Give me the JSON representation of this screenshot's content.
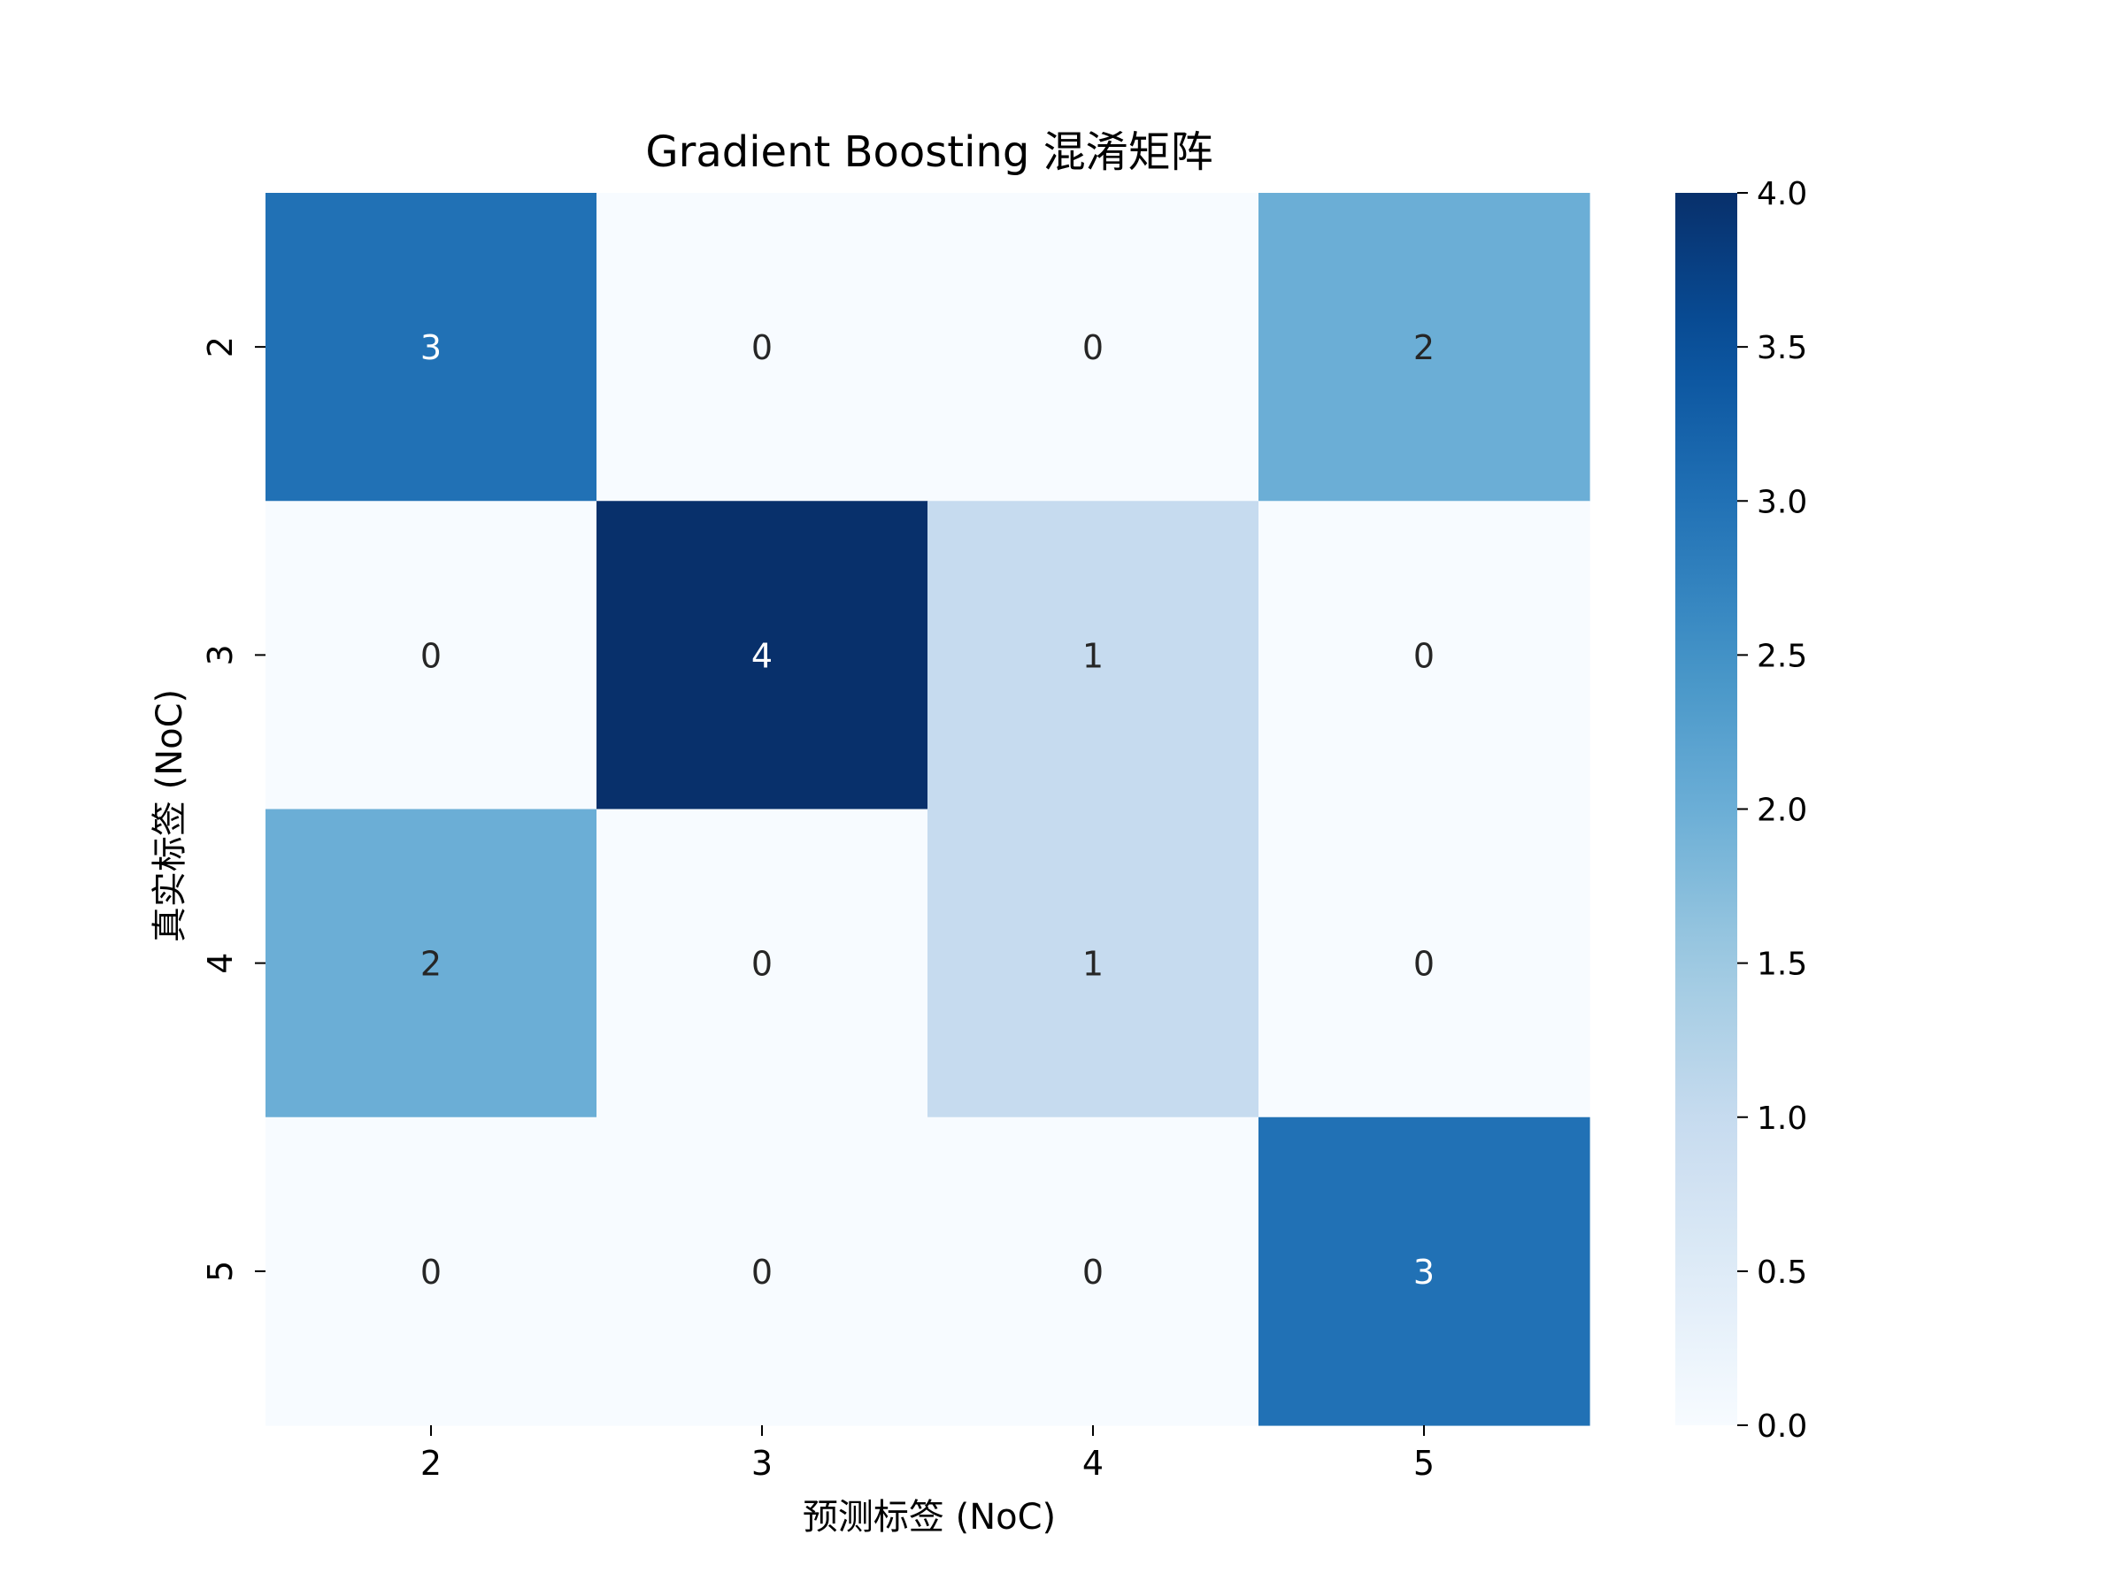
{
  "chart_data": {
    "type": "heatmap",
    "title": "Gradient Boosting 混淆矩阵",
    "xlabel": "预测标签 (NoC)",
    "ylabel": "真实标签 (NoC)",
    "x_categories": [
      "2",
      "3",
      "4",
      "5"
    ],
    "y_categories": [
      "2",
      "3",
      "4",
      "5"
    ],
    "values": [
      [
        3,
        0,
        0,
        2
      ],
      [
        0,
        4,
        1,
        0
      ],
      [
        2,
        0,
        1,
        0
      ],
      [
        0,
        0,
        0,
        3
      ]
    ],
    "colormap": "Blues",
    "color_range": [
      0,
      4
    ],
    "colorbar_ticks": [
      "0.0",
      "0.5",
      "1.0",
      "1.5",
      "2.0",
      "2.5",
      "3.0",
      "3.5",
      "4.0"
    ],
    "colors": {
      "low": "#f7fbff",
      "high": "#08306b"
    }
  }
}
